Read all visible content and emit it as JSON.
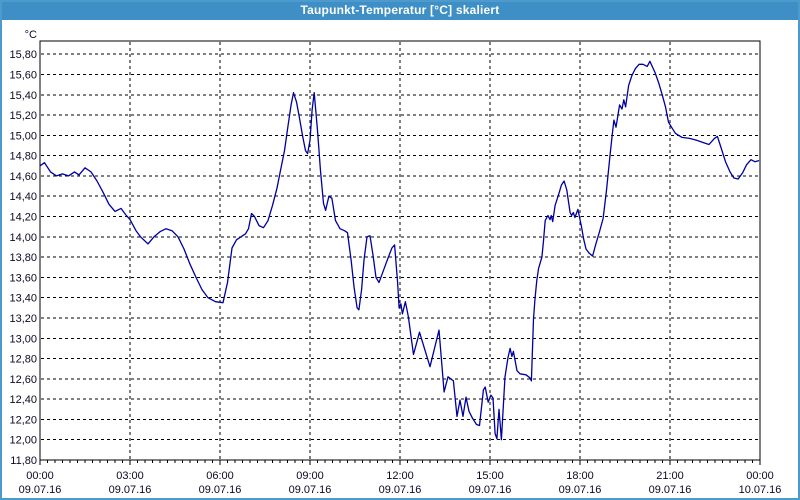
{
  "window": {
    "title": "Taupunkt-Temperatur [°C] skaliert"
  },
  "colors": {
    "titlebar": "#3d8fc5",
    "frame": "#4d9acc",
    "plot_background": "#ffffff",
    "grid": "#000000",
    "axis": "#000000",
    "text": "#0a0a23",
    "line": "#0000a0"
  },
  "chart_data": {
    "type": "line",
    "title": "Taupunkt-Temperatur [°C] skaliert",
    "ylabel": "°C",
    "xlabel": "",
    "ylim": [
      11.8,
      15.93
    ],
    "xlim_hours": [
      0,
      24
    ],
    "grid": "dashed black, horizontal every 0.20 °C, vertical every 3 h",
    "legend": "none",
    "y_ticks": [
      {
        "value": 15.8,
        "label": "15,80"
      },
      {
        "value": 15.6,
        "label": "15,60"
      },
      {
        "value": 15.4,
        "label": "15,40"
      },
      {
        "value": 15.2,
        "label": "15,20"
      },
      {
        "value": 15.0,
        "label": "15,00"
      },
      {
        "value": 14.8,
        "label": "14,80"
      },
      {
        "value": 14.6,
        "label": "14,60"
      },
      {
        "value": 14.4,
        "label": "14,40"
      },
      {
        "value": 14.2,
        "label": "14,20"
      },
      {
        "value": 14.0,
        "label": "14,00"
      },
      {
        "value": 13.8,
        "label": "13,80"
      },
      {
        "value": 13.6,
        "label": "13,60"
      },
      {
        "value": 13.4,
        "label": "13,40"
      },
      {
        "value": 13.2,
        "label": "13,20"
      },
      {
        "value": 13.0,
        "label": "13,00"
      },
      {
        "value": 12.8,
        "label": "12,80"
      },
      {
        "value": 12.6,
        "label": "12,60"
      },
      {
        "value": 12.4,
        "label": "12,40"
      },
      {
        "value": 12.2,
        "label": "12,20"
      },
      {
        "value": 12.0,
        "label": "12,00"
      },
      {
        "value": 11.8,
        "label": "11,80"
      }
    ],
    "x_ticks": [
      {
        "hour": 0,
        "time": "00:00",
        "date": "09.07.16"
      },
      {
        "hour": 3,
        "time": "03:00",
        "date": "09.07.16"
      },
      {
        "hour": 6,
        "time": "06:00",
        "date": "09.07.16"
      },
      {
        "hour": 9,
        "time": "09:00",
        "date": "09.07.16"
      },
      {
        "hour": 12,
        "time": "12:00",
        "date": "09.07.16"
      },
      {
        "hour": 15,
        "time": "15:00",
        "date": "09.07.16"
      },
      {
        "hour": 18,
        "time": "18:00",
        "date": "09.07.16"
      },
      {
        "hour": 21,
        "time": "21:00",
        "date": "09.07.16"
      },
      {
        "hour": 24,
        "time": "00:00",
        "date": "10.07.16"
      }
    ],
    "series": [
      {
        "name": "Taupunkt-Temperatur",
        "points": [
          [
            0.0,
            14.7
          ],
          [
            0.15,
            14.73
          ],
          [
            0.35,
            14.64
          ],
          [
            0.55,
            14.6
          ],
          [
            0.75,
            14.62
          ],
          [
            0.95,
            14.6
          ],
          [
            1.15,
            14.64
          ],
          [
            1.3,
            14.61
          ],
          [
            1.5,
            14.68
          ],
          [
            1.7,
            14.64
          ],
          [
            1.9,
            14.55
          ],
          [
            2.1,
            14.44
          ],
          [
            2.3,
            14.32
          ],
          [
            2.5,
            14.25
          ],
          [
            2.7,
            14.28
          ],
          [
            2.85,
            14.22
          ],
          [
            3.0,
            14.17
          ],
          [
            3.2,
            14.06
          ],
          [
            3.35,
            14.0
          ],
          [
            3.6,
            13.93
          ],
          [
            3.8,
            14.0
          ],
          [
            4.0,
            14.05
          ],
          [
            4.2,
            14.08
          ],
          [
            4.4,
            14.06
          ],
          [
            4.6,
            14.0
          ],
          [
            4.8,
            13.88
          ],
          [
            5.0,
            13.73
          ],
          [
            5.2,
            13.6
          ],
          [
            5.4,
            13.48
          ],
          [
            5.6,
            13.4
          ],
          [
            5.85,
            13.36
          ],
          [
            6.1,
            13.35
          ],
          [
            6.25,
            13.55
          ],
          [
            6.4,
            13.89
          ],
          [
            6.55,
            13.97
          ],
          [
            6.7,
            14.0
          ],
          [
            6.85,
            14.03
          ],
          [
            6.95,
            14.08
          ],
          [
            7.05,
            14.23
          ],
          [
            7.15,
            14.2
          ],
          [
            7.3,
            14.11
          ],
          [
            7.45,
            14.09
          ],
          [
            7.6,
            14.16
          ],
          [
            7.75,
            14.31
          ],
          [
            7.9,
            14.48
          ],
          [
            8.0,
            14.63
          ],
          [
            8.15,
            14.85
          ],
          [
            8.27,
            15.1
          ],
          [
            8.37,
            15.3
          ],
          [
            8.45,
            15.42
          ],
          [
            8.55,
            15.33
          ],
          [
            8.65,
            15.17
          ],
          [
            8.75,
            15.0
          ],
          [
            8.85,
            14.85
          ],
          [
            8.92,
            14.82
          ],
          [
            9.0,
            14.95
          ],
          [
            9.07,
            15.25
          ],
          [
            9.14,
            15.42
          ],
          [
            9.25,
            15.05
          ],
          [
            9.35,
            14.65
          ],
          [
            9.45,
            14.33
          ],
          [
            9.52,
            14.26
          ],
          [
            9.63,
            14.4
          ],
          [
            9.73,
            14.38
          ],
          [
            9.85,
            14.16
          ],
          [
            10.0,
            14.08
          ],
          [
            10.15,
            14.06
          ],
          [
            10.25,
            14.04
          ],
          [
            10.37,
            13.77
          ],
          [
            10.47,
            13.5
          ],
          [
            10.57,
            13.3
          ],
          [
            10.63,
            13.28
          ],
          [
            10.72,
            13.48
          ],
          [
            10.8,
            13.77
          ],
          [
            10.9,
            14.0
          ],
          [
            11.0,
            14.01
          ],
          [
            11.1,
            13.82
          ],
          [
            11.2,
            13.6
          ],
          [
            11.3,
            13.55
          ],
          [
            11.45,
            13.67
          ],
          [
            11.6,
            13.79
          ],
          [
            11.73,
            13.89
          ],
          [
            11.82,
            13.92
          ],
          [
            11.92,
            13.55
          ],
          [
            11.97,
            13.3
          ],
          [
            12.03,
            13.34
          ],
          [
            12.08,
            13.24
          ],
          [
            12.18,
            13.36
          ],
          [
            12.28,
            13.21
          ],
          [
            12.45,
            12.84
          ],
          [
            12.65,
            13.06
          ],
          [
            13.0,
            12.72
          ],
          [
            13.3,
            13.08
          ],
          [
            13.47,
            12.47
          ],
          [
            13.6,
            12.62
          ],
          [
            13.78,
            12.58
          ],
          [
            13.9,
            12.23
          ],
          [
            14.0,
            12.39
          ],
          [
            14.1,
            12.23
          ],
          [
            14.2,
            12.42
          ],
          [
            14.3,
            12.28
          ],
          [
            14.42,
            12.21
          ],
          [
            14.55,
            12.15
          ],
          [
            14.65,
            12.14
          ],
          [
            14.78,
            12.49
          ],
          [
            14.84,
            12.52
          ],
          [
            14.94,
            12.37
          ],
          [
            15.03,
            12.44
          ],
          [
            15.1,
            12.41
          ],
          [
            15.17,
            12.06
          ],
          [
            15.23,
            12.01
          ],
          [
            15.3,
            12.3
          ],
          [
            15.38,
            12.0
          ],
          [
            15.5,
            12.62
          ],
          [
            15.6,
            12.81
          ],
          [
            15.67,
            12.9
          ],
          [
            15.73,
            12.82
          ],
          [
            15.78,
            12.87
          ],
          [
            15.9,
            12.68
          ],
          [
            16.0,
            12.65
          ],
          [
            16.2,
            12.64
          ],
          [
            16.33,
            12.61
          ],
          [
            16.38,
            12.58
          ],
          [
            16.45,
            13.19
          ],
          [
            16.5,
            13.39
          ],
          [
            16.56,
            13.57
          ],
          [
            16.62,
            13.69
          ],
          [
            16.68,
            13.75
          ],
          [
            16.73,
            13.8
          ],
          [
            16.78,
            13.95
          ],
          [
            16.84,
            14.16
          ],
          [
            16.93,
            14.21
          ],
          [
            17.0,
            14.17
          ],
          [
            17.04,
            14.21
          ],
          [
            17.09,
            14.15
          ],
          [
            17.17,
            14.31
          ],
          [
            17.28,
            14.41
          ],
          [
            17.38,
            14.51
          ],
          [
            17.47,
            14.55
          ],
          [
            17.56,
            14.46
          ],
          [
            17.67,
            14.24
          ],
          [
            17.72,
            14.21
          ],
          [
            17.78,
            14.24
          ],
          [
            17.83,
            14.19
          ],
          [
            17.93,
            14.27
          ],
          [
            18.05,
            14.1
          ],
          [
            18.12,
            13.98
          ],
          [
            18.2,
            13.88
          ],
          [
            18.3,
            13.84
          ],
          [
            18.42,
            13.81
          ],
          [
            18.52,
            13.92
          ],
          [
            18.65,
            14.05
          ],
          [
            18.77,
            14.18
          ],
          [
            18.88,
            14.45
          ],
          [
            19.0,
            14.8
          ],
          [
            19.08,
            15.02
          ],
          [
            19.13,
            15.15
          ],
          [
            19.2,
            15.08
          ],
          [
            19.32,
            15.3
          ],
          [
            19.4,
            15.26
          ],
          [
            19.46,
            15.35
          ],
          [
            19.52,
            15.28
          ],
          [
            19.62,
            15.49
          ],
          [
            19.73,
            15.59
          ],
          [
            19.85,
            15.66
          ],
          [
            19.97,
            15.7
          ],
          [
            20.1,
            15.7
          ],
          [
            20.24,
            15.68
          ],
          [
            20.33,
            15.73
          ],
          [
            20.5,
            15.62
          ],
          [
            20.62,
            15.52
          ],
          [
            20.75,
            15.39
          ],
          [
            20.85,
            15.28
          ],
          [
            20.95,
            15.13
          ],
          [
            21.05,
            15.08
          ],
          [
            21.18,
            15.02
          ],
          [
            21.4,
            14.98
          ],
          [
            21.65,
            14.97
          ],
          [
            21.9,
            14.95
          ],
          [
            22.1,
            14.93
          ],
          [
            22.3,
            14.91
          ],
          [
            22.48,
            14.97
          ],
          [
            22.58,
            14.99
          ],
          [
            22.7,
            14.88
          ],
          [
            22.85,
            14.74
          ],
          [
            23.0,
            14.64
          ],
          [
            23.13,
            14.58
          ],
          [
            23.27,
            14.57
          ],
          [
            23.42,
            14.63
          ],
          [
            23.55,
            14.71
          ],
          [
            23.7,
            14.76
          ],
          [
            23.83,
            14.74
          ],
          [
            23.95,
            14.75
          ]
        ]
      }
    ]
  }
}
